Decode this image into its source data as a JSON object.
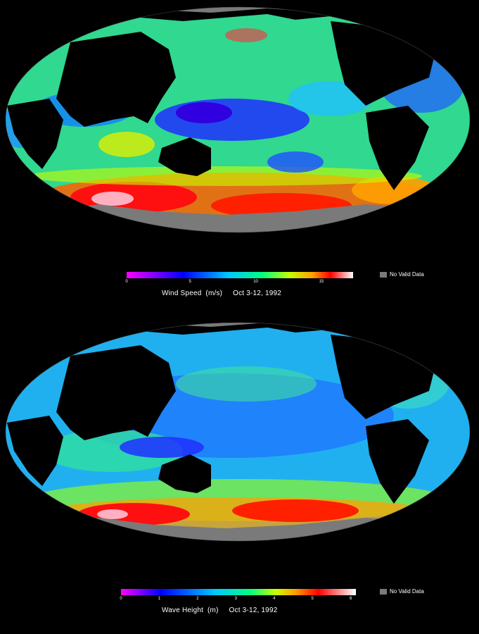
{
  "colors": {
    "background": "#000000",
    "no_data": "#7a7a7a",
    "land": "#000000",
    "ice": "#7a7a7a",
    "colorscale": [
      "#ff00ff",
      "#0000ff",
      "#00c8ff",
      "#00ff80",
      "#c8ff00",
      "#ffa000",
      "#ff0000",
      "#ffffff"
    ]
  },
  "panels": [
    {
      "id": "wind",
      "legend": {
        "ticks": [
          "0",
          "5",
          "10",
          "15"
        ],
        "no_data_label": "No Valid Data",
        "caption": "Wind Speed  (m/s)     Oct 3-12, 1992"
      }
    },
    {
      "id": "wave",
      "legend": {
        "ticks": [
          "0",
          "1",
          "2",
          "3",
          "4",
          "5",
          "6"
        ],
        "no_data_label": "No Valid Data",
        "caption": "Wave Height  (m)     Oct 3-12, 1992"
      }
    }
  ]
}
